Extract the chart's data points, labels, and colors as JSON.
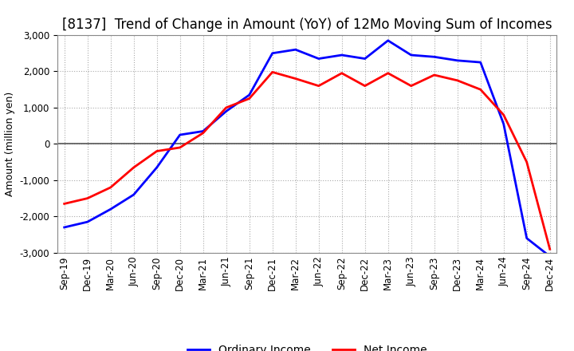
{
  "title": "[8137]  Trend of Change in Amount (YoY) of 12Mo Moving Sum of Incomes",
  "ylabel": "Amount (million yen)",
  "ylim": [
    -3000,
    3000
  ],
  "yticks": [
    -3000,
    -2000,
    -1000,
    0,
    1000,
    2000,
    3000
  ],
  "x_labels": [
    "Sep-19",
    "Dec-19",
    "Mar-20",
    "Jun-20",
    "Sep-20",
    "Dec-20",
    "Mar-21",
    "Jun-21",
    "Sep-21",
    "Dec-21",
    "Mar-22",
    "Jun-22",
    "Sep-22",
    "Dec-22",
    "Mar-23",
    "Jun-23",
    "Sep-23",
    "Dec-23",
    "Mar-24",
    "Jun-24",
    "Sep-24",
    "Dec-24"
  ],
  "ordinary_income": [
    -2300,
    -2150,
    -1800,
    -1400,
    -650,
    250,
    350,
    900,
    1350,
    2500,
    2600,
    2350,
    2450,
    2350,
    2850,
    2450,
    2400,
    2300,
    2250,
    550,
    -2600,
    -3100
  ],
  "net_income": [
    -1650,
    -1500,
    -1200,
    -650,
    -200,
    -100,
    300,
    1000,
    1250,
    1980,
    1800,
    1600,
    1950,
    1600,
    1950,
    1600,
    1900,
    1750,
    1500,
    800,
    -500,
    -2900
  ],
  "ordinary_color": "#0000FF",
  "net_color": "#FF0000",
  "background_color": "#FFFFFF",
  "grid_color": "#AAAAAA",
  "title_fontsize": 12,
  "label_fontsize": 9,
  "tick_fontsize": 8.5,
  "legend_fontsize": 10
}
